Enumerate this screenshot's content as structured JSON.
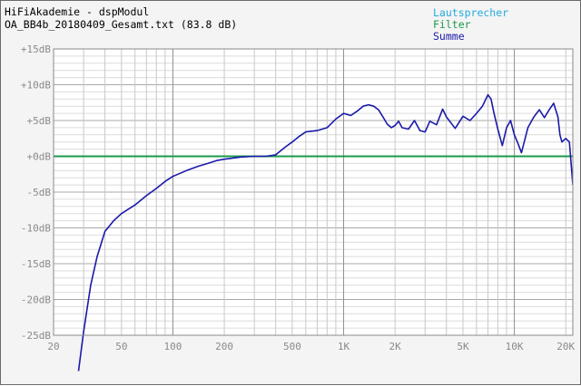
{
  "header": {
    "title": "HiFiAkademie - dspModul",
    "file": "OA_BB4b_20180409_Gesamt.txt  (83.8 dB)"
  },
  "legend": [
    {
      "label": "Lautsprecher",
      "color": "#22aadd"
    },
    {
      "label": "Filter",
      "color": "#1a9a4a"
    },
    {
      "label": "Summe",
      "color": "#1a1aaa"
    }
  ],
  "chart_data": {
    "type": "line",
    "x_scale": "log",
    "xlim": [
      20,
      22000
    ],
    "ylim": [
      -25,
      15
    ],
    "yunit": "dB",
    "y_ticks": [
      15,
      10,
      5,
      0,
      -5,
      -10,
      -15,
      -20,
      -25
    ],
    "y_tick_labels": [
      "+15dB",
      "+10dB",
      "+5dB",
      "+0dB",
      "-5dB",
      "-10dB",
      "-15dB",
      "-20dB",
      "-25dB"
    ],
    "x_ticks": [
      20,
      50,
      100,
      200,
      500,
      1000,
      2000,
      5000,
      10000,
      20000
    ],
    "x_tick_labels": [
      "20",
      "50",
      "100",
      "200",
      "500",
      "1K",
      "2K",
      "5K",
      "10K",
      "20K"
    ],
    "grid": true,
    "series": [
      {
        "name": "Filter",
        "color": "#1a9a4a",
        "x": [
          20,
          22000
        ],
        "y": [
          0,
          0
        ]
      },
      {
        "name": "Summe",
        "color": "#1a1aaa",
        "x": [
          28,
          30,
          33,
          36,
          40,
          45,
          50,
          60,
          70,
          80,
          90,
          100,
          120,
          140,
          160,
          180,
          200,
          250,
          300,
          350,
          400,
          450,
          500,
          550,
          600,
          700,
          800,
          900,
          1000,
          1100,
          1200,
          1300,
          1400,
          1500,
          1600,
          1700,
          1800,
          1900,
          2000,
          2100,
          2200,
          2400,
          2600,
          2800,
          3000,
          3200,
          3500,
          3800,
          4000,
          4500,
          5000,
          5500,
          6000,
          6500,
          7000,
          7300,
          7600,
          8000,
          8500,
          9000,
          9500,
          10000,
          10500,
          11000,
          12000,
          13000,
          14000,
          15000,
          16000,
          17000,
          18000,
          18500,
          19000,
          20000,
          21000,
          22000
        ],
        "y": [
          -30,
          -24.5,
          -18,
          -14,
          -10.5,
          -9,
          -8,
          -6.8,
          -5.5,
          -4.5,
          -3.5,
          -2.8,
          -2,
          -1.4,
          -1,
          -0.6,
          -0.4,
          -0.1,
          0,
          0,
          0.2,
          1.2,
          2,
          2.8,
          3.4,
          3.6,
          4,
          5.2,
          6,
          5.7,
          6.3,
          7,
          7.2,
          7,
          6.5,
          5.5,
          4.5,
          4,
          4.3,
          4.9,
          4,
          3.8,
          5,
          3.6,
          3.4,
          4.9,
          4.4,
          6.6,
          5.5,
          3.9,
          5.6,
          5,
          6,
          7,
          8.6,
          8,
          6,
          3.8,
          1.5,
          4,
          5,
          3,
          1.8,
          0.5,
          4,
          5.5,
          6.5,
          5.4,
          6.5,
          7.4,
          5.5,
          3,
          2,
          2.5,
          2,
          -4
        ]
      }
    ]
  }
}
